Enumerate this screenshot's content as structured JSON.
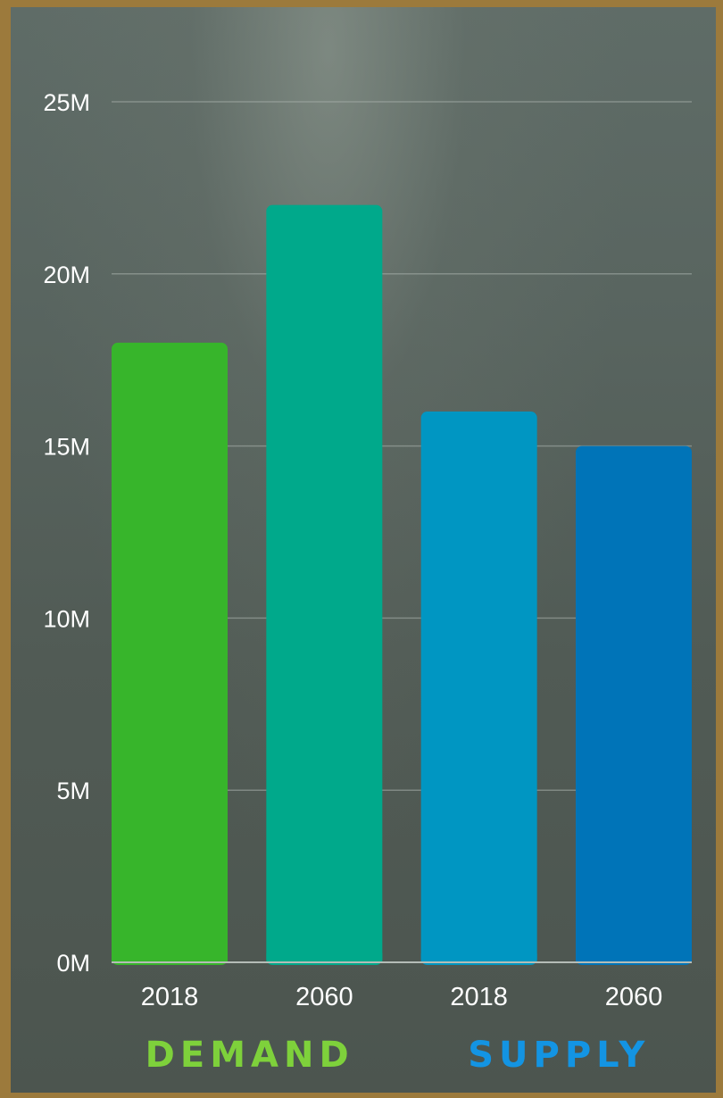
{
  "chart_data": {
    "type": "bar",
    "categories": [
      "2018",
      "2060",
      "2018",
      "2060"
    ],
    "values": [
      18000000,
      22000000,
      16000000,
      15000000
    ],
    "bar_colors": [
      "#37b52b",
      "#00a98b",
      "#0096c2",
      "#0074b8"
    ],
    "groups": [
      {
        "label": "DEMAND",
        "color": "#7ed13b",
        "categories": [
          0,
          1
        ]
      },
      {
        "label": "SUPPLY",
        "color": "#1394e3",
        "categories": [
          2,
          3
        ]
      }
    ],
    "yticks": [
      "0M",
      "5M",
      "10M",
      "15M",
      "20M",
      "25M"
    ],
    "ytick_values": [
      0,
      5000000,
      10000000,
      15000000,
      20000000,
      25000000
    ],
    "ylim": [
      0,
      25000000
    ],
    "grid": true,
    "title": "",
    "xlabel": "",
    "ylabel": ""
  },
  "colors": {
    "frame": "#9c7a3c",
    "gridline": "#a8b0ab"
  }
}
